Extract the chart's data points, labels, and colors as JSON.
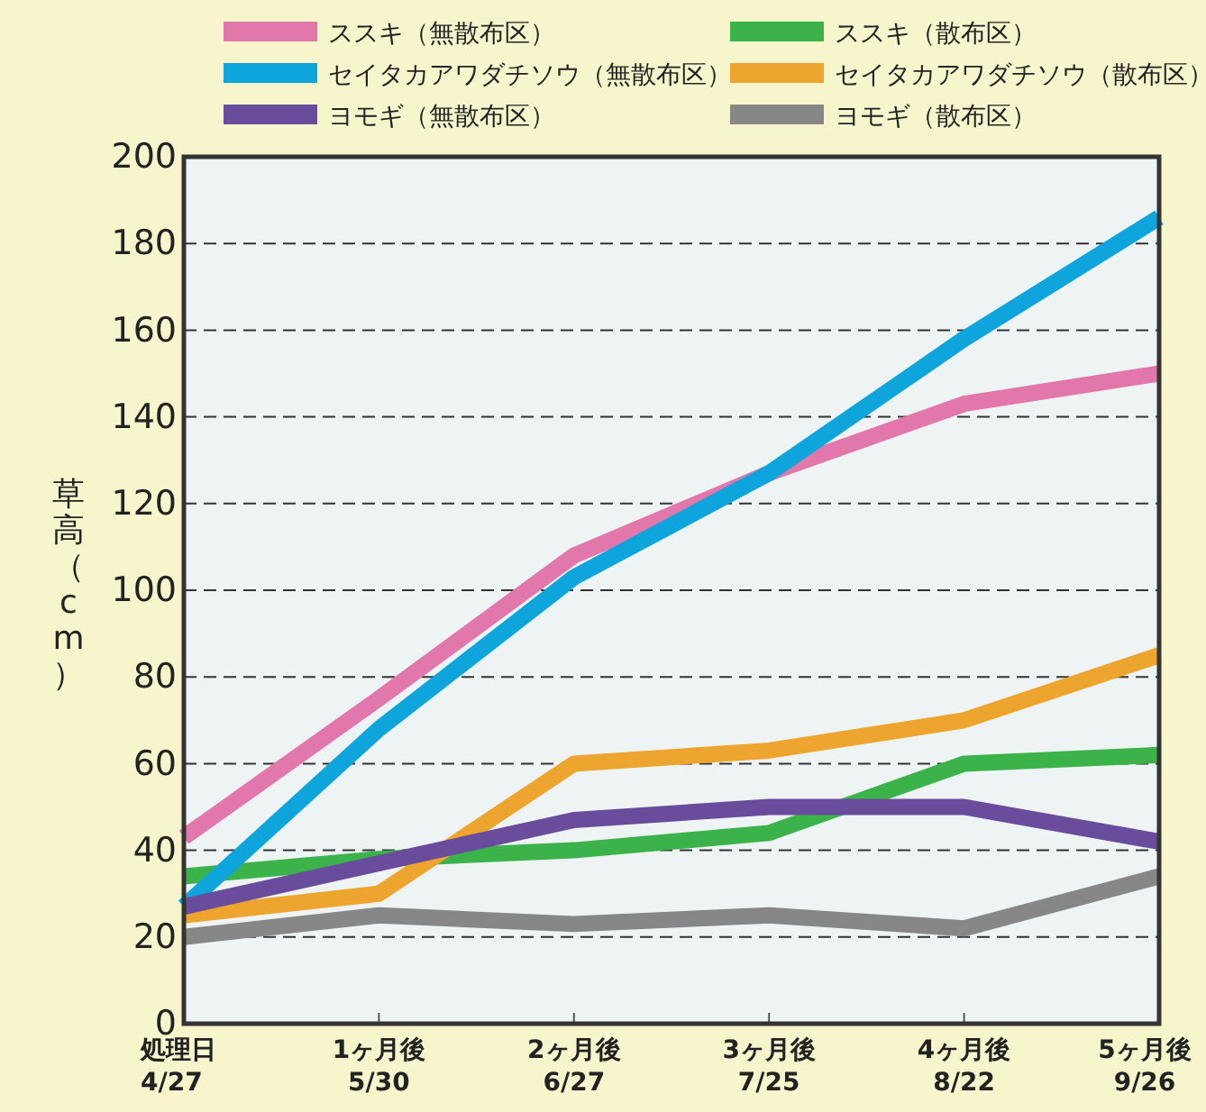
{
  "chart_data": {
    "type": "line",
    "ylabel": "草高（cm）",
    "categories": [
      "処理日\n4/27",
      "1ヶ月後\n5/30",
      "2ヶ月後\n6/27",
      "3ヶ月後\n7/25",
      "4ヶ月後\n8/22",
      "5ヶ月後\n9/26"
    ],
    "ylim": [
      0,
      200
    ],
    "yticks": [
      0,
      20,
      40,
      60,
      80,
      100,
      120,
      140,
      160,
      180,
      200
    ],
    "grid": "y",
    "legend": "top",
    "line_style": "solid",
    "marker": "none",
    "series": [
      {
        "name": "ススキ（無散布区）",
        "color": "#e277ac",
        "values": [
          43,
          75,
          108,
          127,
          143,
          150
        ]
      },
      {
        "name": "ススキ（散布区）",
        "color": "#3cb34a",
        "values": [
          34,
          38,
          40,
          44,
          60,
          62
        ]
      },
      {
        "name": "セイタカアワダチソウ（無散布区）",
        "color": "#0ea5dc",
        "values": [
          27,
          68,
          103,
          127,
          158,
          186
        ]
      },
      {
        "name": "セイタカアワダチソウ（散布区）",
        "color": "#eea530",
        "values": [
          25,
          30,
          60,
          63,
          70,
          85
        ]
      },
      {
        "name": "ヨモギ（無散布区）",
        "color": "#6a4c9c",
        "values": [
          27,
          37,
          47,
          50,
          50,
          42
        ]
      },
      {
        "name": "ヨモギ（散布区）",
        "color": "#878787",
        "values": [
          20,
          25,
          23,
          25,
          22,
          34
        ]
      }
    ]
  }
}
